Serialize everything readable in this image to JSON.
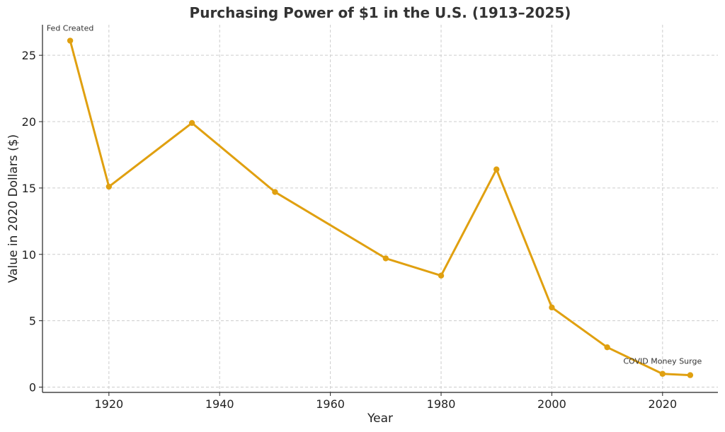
{
  "chart_data": {
    "type": "line",
    "title": "Purchasing Power of $1 in the U.S. (1913–2025)",
    "xlabel": "Year",
    "ylabel": "Value in 2020 Dollars ($)",
    "xlim": [
      1908,
      2030
    ],
    "ylim": [
      -0.4,
      27.3
    ],
    "xticks": [
      1920,
      1940,
      1960,
      1980,
      2000,
      2020
    ],
    "yticks": [
      0,
      5,
      10,
      15,
      20,
      25
    ],
    "grid": true,
    "legend": "none",
    "series": [
      {
        "color": "#e0a010",
        "points": [
          {
            "x": 1913,
            "y": 26.1
          },
          {
            "x": 1920,
            "y": 15.1
          },
          {
            "x": 1935,
            "y": 19.9
          },
          {
            "x": 1950,
            "y": 14.7
          },
          {
            "x": 1970,
            "y": 9.7
          },
          {
            "x": 1980,
            "y": 8.4
          },
          {
            "x": 1990,
            "y": 16.4
          },
          {
            "x": 2000,
            "y": 6.0
          },
          {
            "x": 2010,
            "y": 3.0
          },
          {
            "x": 2020,
            "y": 1.0
          },
          {
            "x": 2025,
            "y": 0.9
          }
        ]
      }
    ],
    "annotations": [
      {
        "text": "Fed Created",
        "x": 1913,
        "y": 26.1
      },
      {
        "text": "COVID Money Surge",
        "x": 2020,
        "y": 1.0
      }
    ]
  }
}
